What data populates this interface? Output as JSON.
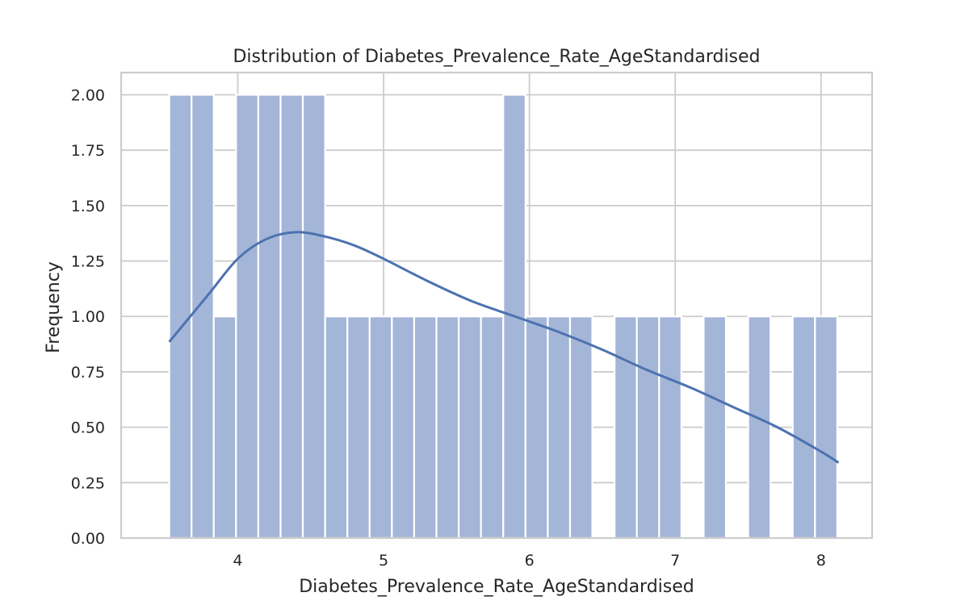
{
  "chart_data": {
    "type": "histogram",
    "title": "Distribution of Diabetes_Prevalence_Rate_AgeStandardised",
    "xlabel": "Diabetes_Prevalence_Rate_AgeStandardised",
    "ylabel": "Frequency",
    "xlim": [
      3.2,
      8.35
    ],
    "ylim": [
      0,
      2.1
    ],
    "xticks": [
      4,
      5,
      6,
      7,
      8
    ],
    "yticks": [
      0.0,
      0.25,
      0.5,
      0.75,
      1.0,
      1.25,
      1.5,
      1.75,
      2.0
    ],
    "ytick_labels": [
      "0.00",
      "0.25",
      "0.50",
      "0.75",
      "1.00",
      "1.25",
      "1.50",
      "1.75",
      "2.00"
    ],
    "bin_start": 3.53,
    "bin_width": 0.1527,
    "counts": [
      2,
      2,
      1,
      2,
      2,
      2,
      2,
      1,
      1,
      1,
      1,
      1,
      1,
      1,
      1,
      2,
      1,
      1,
      1,
      0,
      1,
      1,
      1,
      0,
      1,
      0,
      1,
      0,
      1,
      1
    ],
    "kde": {
      "x": [
        3.53,
        3.8,
        4.0,
        4.2,
        4.4,
        4.6,
        4.8,
        5.0,
        5.3,
        5.6,
        5.9,
        6.2,
        6.5,
        6.8,
        7.1,
        7.4,
        7.7,
        8.0,
        8.12
      ],
      "y": [
        0.885,
        1.1,
        1.26,
        1.35,
        1.38,
        1.36,
        1.32,
        1.26,
        1.16,
        1.07,
        1.0,
        0.93,
        0.85,
        0.76,
        0.68,
        0.59,
        0.5,
        0.39,
        0.34
      ]
    },
    "colors": {
      "bar_fill": "#a4b6d7",
      "bar_edge": "#ffffff",
      "kde_line": "#4c72b0",
      "grid": "#cccccc",
      "frame": "#cccccc",
      "text": "#262626"
    }
  }
}
